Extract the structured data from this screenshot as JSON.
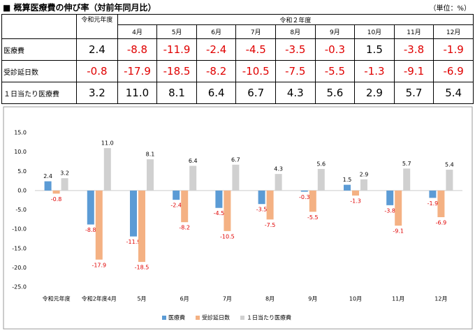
{
  "header": {
    "title": "■ 概算医療費の伸び率（対前年同月比）",
    "unit": "（単位：%）"
  },
  "table": {
    "header_top": [
      "令和元年度",
      "令和２年度"
    ],
    "header_months": [
      "4月",
      "5月",
      "6月",
      "7月",
      "8月",
      "9月",
      "10月",
      "11月",
      "12月"
    ],
    "rows": [
      [
        "医療費",
        "2.4",
        "-8.8",
        "-11.9",
        "-2.4",
        "-4.5",
        "-3.5",
        "-0.3",
        "1.5",
        "-3.8",
        "-1.9"
      ],
      [
        "受診延日数",
        "-0.8",
        "-17.9",
        "-18.5",
        "-8.2",
        "-10.5",
        "-7.5",
        "-5.5",
        "-1.3",
        "-9.1",
        "-6.9"
      ],
      [
        "１日当たり医療費",
        "3.2",
        "11.0",
        "8.1",
        "6.4",
        "6.7",
        "4.3",
        "5.6",
        "2.9",
        "5.7",
        "5.4"
      ]
    ]
  },
  "chart_data": {
    "type": "bar",
    "categories": [
      "令和元年度",
      "令和2年度4月",
      "5月",
      "6月",
      "7月",
      "8月",
      "9月",
      "10月",
      "11月",
      "12月"
    ],
    "series": [
      {
        "name": "医療費",
        "color": "#5b9bd5",
        "values": [
          2.4,
          -8.8,
          -11.9,
          -2.4,
          -4.5,
          -3.5,
          -0.3,
          1.5,
          -3.8,
          -1.9
        ]
      },
      {
        "name": "受診延日数",
        "color": "#f4b183",
        "values": [
          -0.8,
          -17.9,
          -18.5,
          -8.2,
          -10.5,
          -7.5,
          -5.5,
          -1.3,
          -9.1,
          -6.9
        ]
      },
      {
        "name": "１日当たり医療費",
        "color": "#d0d0d0",
        "values": [
          3.2,
          11,
          8.1,
          6.4,
          6.7,
          4.3,
          5.6,
          2.9,
          5.7,
          5.4
        ],
        "value_labels": [
          "3.2",
          "11.0",
          "8.1",
          "6.4",
          "6.7",
          "4.3",
          "5.6",
          "2.9",
          "5.7",
          "5.4"
        ]
      }
    ],
    "ylim": [
      -25,
      15
    ],
    "yticks": [
      {
        "value": -25,
        "label": "-25.0"
      },
      {
        "value": -20,
        "label": "-20.0"
      },
      {
        "value": -15,
        "label": "-15.0"
      },
      {
        "value": -10,
        "label": "-10.0"
      },
      {
        "value": -5,
        "label": "-5.0"
      },
      {
        "value": 0,
        "label": "0.0"
      },
      {
        "value": 5,
        "label": "5.0"
      },
      {
        "value": 10,
        "label": "10.0"
      },
      {
        "value": 15,
        "label": "15.0"
      }
    ],
    "negative_color": "#e00000",
    "legend": "bottom"
  }
}
